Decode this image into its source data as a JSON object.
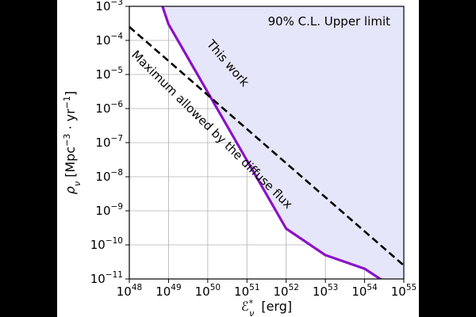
{
  "chart_data": {
    "type": "line",
    "title": "90% C.L. Upper limit",
    "xlabel": "ℰ*ν [erg]",
    "ylabel": "ρν [Mpc⁻³ · yr⁻¹]",
    "xscale": "log",
    "yscale": "log",
    "xlim": [
      1e+48,
      1e+55
    ],
    "ylim": [
      1e-11,
      0.001
    ],
    "x_ticks": [
      48,
      49,
      50,
      51,
      52,
      53,
      54,
      55
    ],
    "y_ticks": [
      -11,
      -10,
      -9,
      -8,
      -7,
      -6,
      -5,
      -4,
      -3
    ],
    "tick_base": "10",
    "grid": true,
    "series": [
      {
        "name": "This work",
        "style": "solid",
        "color": "#8a12c8",
        "fill_above": "#e6e6fa",
        "x": [
          7e+48,
          1e+49,
          1e+50,
          1e+51,
          1e+52,
          1e+53,
          1e+54,
          1e+55
        ],
        "y": [
          0.001,
          0.0003,
          3e-06,
          3e-08,
          3e-10,
          5e-11,
          2e-11,
          3.5e-12
        ]
      },
      {
        "name": "Maximum allowed by the diffuse flux",
        "style": "dashed",
        "color": "#000000",
        "x": [
          1e+48,
          1e+55
        ],
        "y": [
          0.00025,
          2.5e-11
        ]
      }
    ],
    "annotations": [
      "This work",
      "Maximum allowed by the diffuse flux"
    ]
  }
}
